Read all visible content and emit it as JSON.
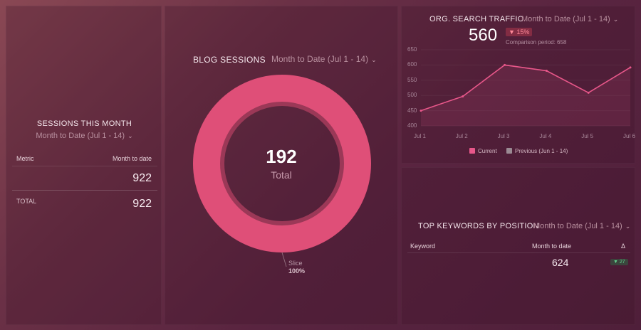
{
  "sessions_panel": {
    "title": "SESSIONS THIS MONTH",
    "period": "Month to Date (Jul 1 - 14)",
    "col_metric": "Metric",
    "col_value": "Month to date",
    "row_value": "922",
    "total_label": "TOTAL",
    "total_value": "922"
  },
  "blog_panel": {
    "title": "BLOG SESSIONS",
    "period": "Month to Date (Jul 1 - 14)",
    "center_value": "192",
    "center_label": "Total",
    "slice_label": "Slice",
    "slice_pct": "100%",
    "accent": "#df4f78"
  },
  "traffic_panel": {
    "title": "ORG. SEARCH TRAFFIC",
    "period": "Month to Date (Jul 1 - 14)",
    "value": "560",
    "change": "▼ 15%",
    "comparison": "Comparison period: 658",
    "legend_current": "Current",
    "legend_previous": "Previous (Jun 1 - 14)"
  },
  "keywords_panel": {
    "title": "TOP KEYWORDS BY POSITION",
    "period": "Month to Date (Jul 1 - 14)",
    "col_keyword": "Keyword",
    "col_value": "Month to date",
    "col_delta": "Δ",
    "value": "624",
    "delta": "▼ 27"
  },
  "chart_data": {
    "type": "area",
    "categories": [
      "Jul 1",
      "Jul 2",
      "Jul 3",
      "Jul 4",
      "Jul 5",
      "Jul 6"
    ],
    "series": [
      {
        "name": "Current",
        "values": [
          450,
          497,
          600,
          581,
          509,
          592
        ]
      }
    ],
    "yticks": [
      "650",
      "600",
      "550",
      "500",
      "450",
      "400"
    ],
    "ylim": [
      400,
      650
    ],
    "color": "#e8578a"
  },
  "icons": {
    "period_chevron": "chevron-down-icon",
    "check": "checkbox-icon"
  }
}
